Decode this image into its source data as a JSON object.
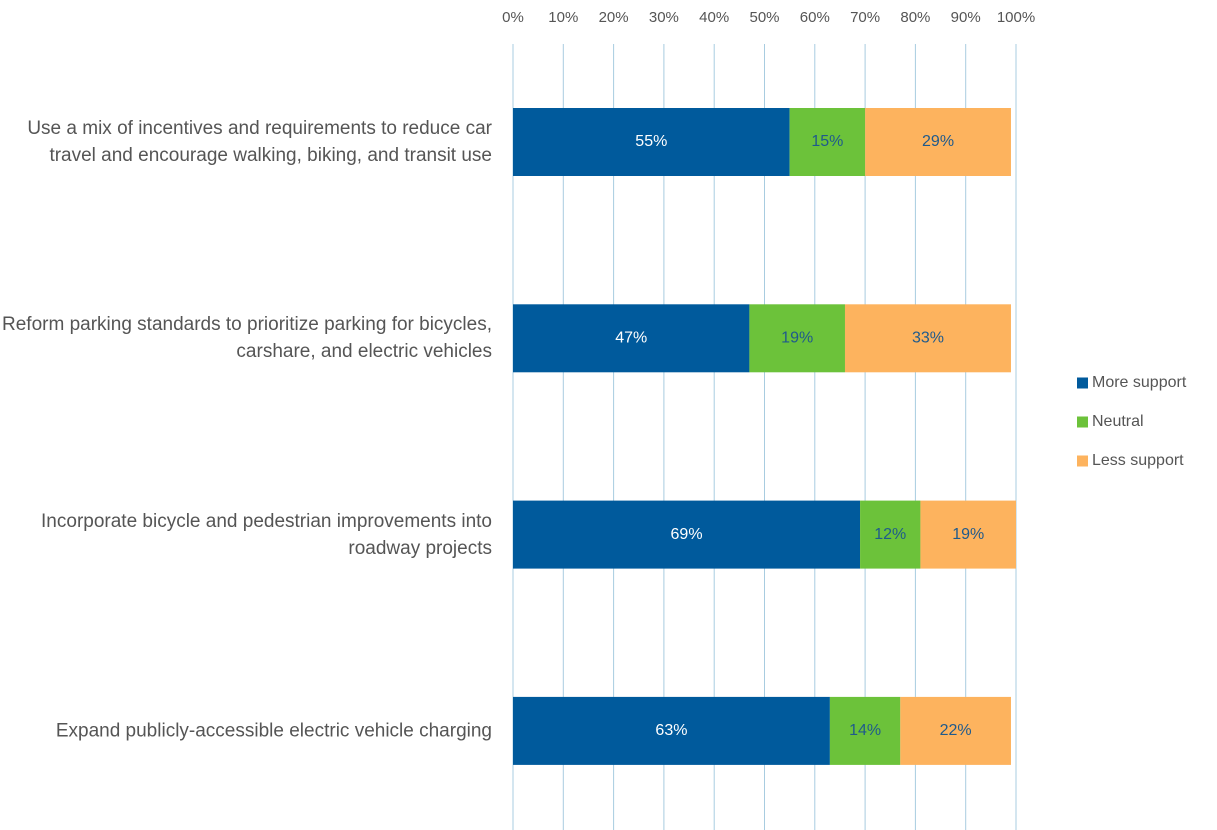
{
  "chart_data": {
    "type": "stacked-barh",
    "categories": [
      "Use a mix of incentives and requirements to reduce car travel and encourage walking, biking, and transit use",
      "Reform parking standards to prioritize parking for bicycles, carshare, and electric vehicles",
      "Incorporate bicycle and pedestrian improvements into roadway projects",
      "Expand publicly-accessible electric vehicle charging"
    ],
    "series": [
      {
        "name": "More support",
        "color": "#005a9c",
        "label_color": "#ffffff",
        "values": [
          55,
          47,
          69,
          63
        ],
        "value_labels": [
          "55%",
          "47%",
          "69%",
          "63%"
        ]
      },
      {
        "name": "Neutral",
        "color": "#6cc23a",
        "label_color": "#1f5a8c",
        "values": [
          15,
          19,
          12,
          14
        ],
        "value_labels": [
          "15%",
          "19%",
          "12%",
          "14%"
        ]
      },
      {
        "name": "Less support",
        "color": "#fdb35e",
        "label_color": "#1f5a8c",
        "values": [
          29,
          33,
          19,
          22
        ],
        "value_labels": [
          "29%",
          "33%",
          "19%",
          "22%"
        ]
      }
    ],
    "xlim": [
      0,
      100
    ],
    "xticks": [
      {
        "value": 0,
        "label": "0%"
      },
      {
        "value": 10,
        "label": "10%"
      },
      {
        "value": 20,
        "label": "20%"
      },
      {
        "value": 30,
        "label": "30%"
      },
      {
        "value": 40,
        "label": "40%"
      },
      {
        "value": 50,
        "label": "50%"
      },
      {
        "value": 60,
        "label": "60%"
      },
      {
        "value": 70,
        "label": "70%"
      },
      {
        "value": 80,
        "label": "80%"
      },
      {
        "value": 90,
        "label": "90%"
      },
      {
        "value": 100,
        "label": "100%"
      }
    ],
    "grid": true,
    "grid_color": "#a8cce0",
    "legend": "right"
  }
}
